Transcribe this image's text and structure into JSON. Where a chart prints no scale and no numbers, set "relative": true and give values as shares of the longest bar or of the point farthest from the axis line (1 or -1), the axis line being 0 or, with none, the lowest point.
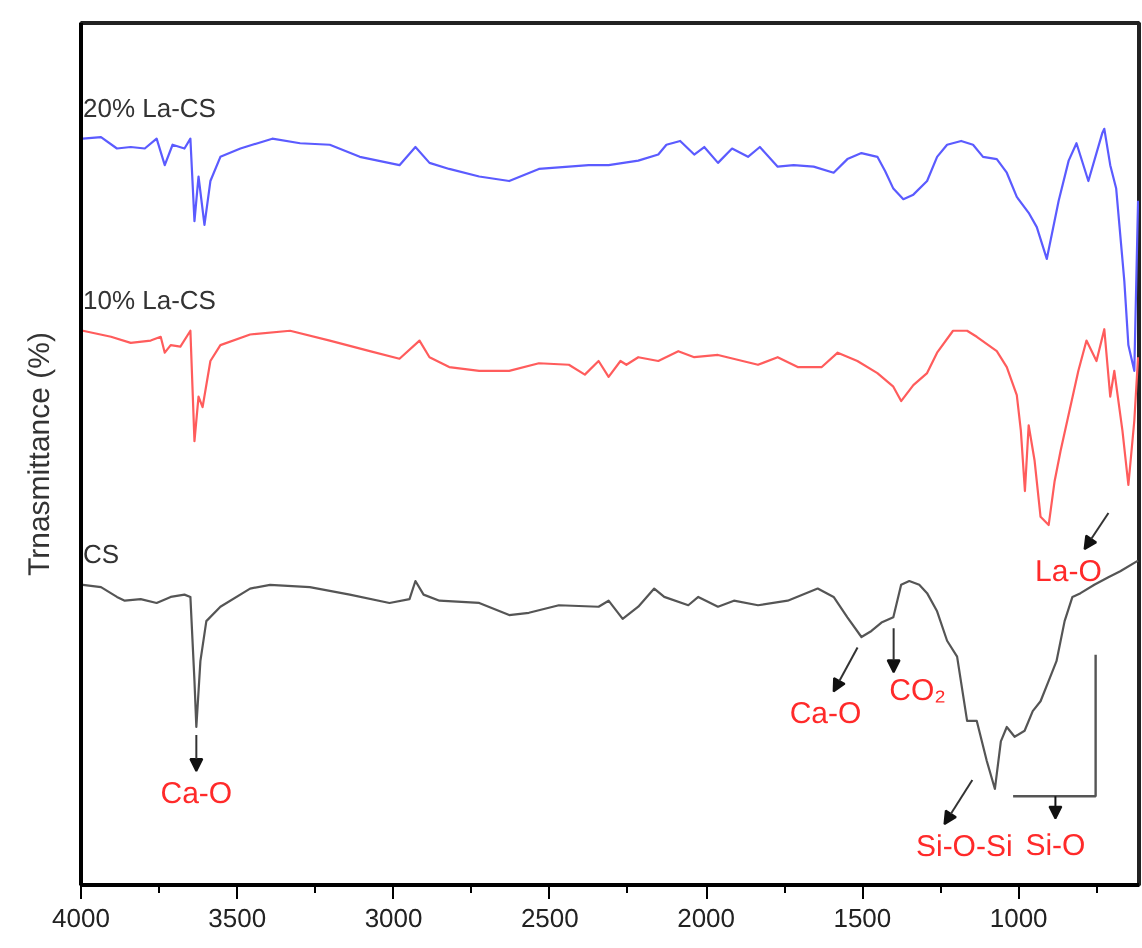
{
  "chart_data": {
    "type": "line",
    "relative": true,
    "ylabel": "Trnasmittance (%)",
    "xlim": [
      4000,
      615
    ],
    "xticks": [
      4000,
      {
        "value": 3750,
        "label": null
      },
      3500,
      {
        "value": 3250,
        "label": null
      },
      3000,
      {
        "value": 2750,
        "label": null
      },
      2500,
      {
        "value": 2250,
        "label": null
      },
      2000,
      {
        "value": 1750,
        "label": null
      },
      1500,
      {
        "value": 1250,
        "label": null
      },
      1000,
      {
        "value": 750,
        "label": null
      }
    ],
    "tick_labels": "x",
    "grid": false,
    "legend": false,
    "line_style": "solid",
    "marker": "none",
    "series": [
      {
        "name": "20% La-CS",
        "color": "#5b5bff",
        "x": [
          3994,
          3936,
          3885,
          3841,
          3796,
          3758,
          3732,
          3707,
          3669,
          3650,
          3637,
          3624,
          3605,
          3586,
          3554,
          3490,
          3388,
          3299,
          3204,
          3108,
          2981,
          2930,
          2885,
          2822,
          2726,
          2630,
          2535,
          2439,
          2376,
          2312,
          2217,
          2153,
          2127,
          2083,
          2038,
          2006,
          1962,
          1917,
          1866,
          1828,
          1771,
          1720,
          1656,
          1592,
          1548,
          1503,
          1452,
          1427,
          1401,
          1369,
          1337,
          1293,
          1261,
          1229,
          1184,
          1146,
          1114,
          1070,
          1038,
          1006,
          968,
          942,
          910,
          872,
          840,
          815,
          777,
          732,
          726,
          707,
          688,
          662,
          649,
          630,
          618
        ],
        "values": [
          0.987,
          0.989,
          0.974,
          0.976,
          0.974,
          0.987,
          0.952,
          0.979,
          0.974,
          0.987,
          0.878,
          0.937,
          0.873,
          0.931,
          0.963,
          0.974,
          0.987,
          0.981,
          0.979,
          0.963,
          0.952,
          0.976,
          0.955,
          0.947,
          0.937,
          0.931,
          0.947,
          0.95,
          0.952,
          0.952,
          0.958,
          0.966,
          0.979,
          0.984,
          0.966,
          0.976,
          0.955,
          0.974,
          0.963,
          0.976,
          0.95,
          0.952,
          0.95,
          0.942,
          0.96,
          0.968,
          0.963,
          0.944,
          0.921,
          0.907,
          0.913,
          0.931,
          0.963,
          0.979,
          0.984,
          0.979,
          0.963,
          0.96,
          0.942,
          0.91,
          0.889,
          0.87,
          0.828,
          0.905,
          0.958,
          0.981,
          0.931,
          0.995,
          1,
          0.952,
          0.921,
          0.799,
          0.714,
          0.68,
          0.905
        ]
      },
      {
        "name": "10% La-CS",
        "color": "#ff5c5c",
        "x": [
          3994,
          3904,
          3841,
          3777,
          3745,
          3732,
          3713,
          3682,
          3650,
          3637,
          3624,
          3611,
          3586,
          3554,
          3459,
          3331,
          3204,
          3076,
          2981,
          2917,
          2885,
          2822,
          2726,
          2630,
          2535,
          2439,
          2388,
          2344,
          2312,
          2274,
          2255,
          2217,
          2153,
          2089,
          2038,
          1962,
          1834,
          1771,
          1707,
          1630,
          1579,
          1516,
          1452,
          1401,
          1376,
          1337,
          1293,
          1261,
          1210,
          1165,
          1134,
          1070,
          1038,
          1006,
          993,
          980,
          968,
          949,
          930,
          904,
          885,
          866,
          809,
          783,
          751,
          726,
          707,
          694,
          668,
          649,
          630,
          618
        ],
        "values": [
          0.733,
          0.725,
          0.717,
          0.72,
          0.725,
          0.704,
          0.714,
          0.712,
          0.733,
          0.587,
          0.646,
          0.632,
          0.693,
          0.714,
          0.728,
          0.733,
          0.72,
          0.706,
          0.696,
          0.72,
          0.698,
          0.685,
          0.68,
          0.68,
          0.69,
          0.688,
          0.675,
          0.693,
          0.672,
          0.693,
          0.688,
          0.698,
          0.693,
          0.706,
          0.698,
          0.701,
          0.688,
          0.698,
          0.685,
          0.685,
          0.704,
          0.693,
          0.677,
          0.659,
          0.64,
          0.661,
          0.677,
          0.704,
          0.733,
          0.733,
          0.725,
          0.706,
          0.685,
          0.648,
          0.601,
          0.521,
          0.608,
          0.561,
          0.487,
          0.476,
          0.534,
          0.574,
          0.68,
          0.72,
          0.693,
          0.735,
          0.646,
          0.68,
          0.601,
          0.529,
          0.614,
          0.698
        ]
      },
      {
        "name": "CS",
        "color": "#555555",
        "x": [
          3994,
          3936,
          3885,
          3860,
          3809,
          3758,
          3713,
          3669,
          3650,
          3637,
          3631,
          3618,
          3599,
          3554,
          3459,
          3395,
          3268,
          3140,
          3013,
          2949,
          2930,
          2904,
          2853,
          2726,
          2630,
          2567,
          2471,
          2344,
          2312,
          2267,
          2217,
          2166,
          2134,
          2057,
          2025,
          1962,
          1911,
          1834,
          1739,
          1643,
          1592,
          1548,
          1503,
          1471,
          1439,
          1401,
          1376,
          1350,
          1318,
          1293,
          1261,
          1229,
          1197,
          1165,
          1134,
          1102,
          1076,
          1057,
          1038,
          1013,
          981,
          955,
          930,
          904,
          879,
          853,
          828,
          802,
          758,
          713,
          675,
          618
        ],
        "values": [
          0.397,
          0.394,
          0.381,
          0.376,
          0.378,
          0.373,
          0.381,
          0.384,
          0.381,
          0.27,
          0.209,
          0.296,
          0.349,
          0.368,
          0.392,
          0.397,
          0.394,
          0.384,
          0.373,
          0.378,
          0.402,
          0.384,
          0.376,
          0.373,
          0.357,
          0.36,
          0.37,
          0.368,
          0.376,
          0.352,
          0.368,
          0.392,
          0.381,
          0.37,
          0.381,
          0.368,
          0.376,
          0.37,
          0.376,
          0.392,
          0.381,
          0.354,
          0.328,
          0.336,
          0.347,
          0.354,
          0.397,
          0.402,
          0.397,
          0.386,
          0.362,
          0.323,
          0.302,
          0.217,
          0.217,
          0.164,
          0.127,
          0.19,
          0.209,
          0.196,
          0.204,
          0.23,
          0.243,
          0.27,
          0.296,
          0.349,
          0.381,
          0.386,
          0.397,
          0.407,
          0.415,
          0.429
        ]
      }
    ],
    "annotations": [
      {
        "text": "Ca-O",
        "x": 3631,
        "y": 0.209
      },
      {
        "text": "Ca-O",
        "x": 1490,
        "y": 0.33
      },
      {
        "text": "CO₂",
        "x": 1400,
        "y": 0.35
      },
      {
        "text": "Si-O-Si",
        "x": 1110,
        "y": 0.16
      },
      "Si-O",
      {
        "text": "La-O",
        "x": 649,
        "y": 0.529
      }
    ]
  }
}
